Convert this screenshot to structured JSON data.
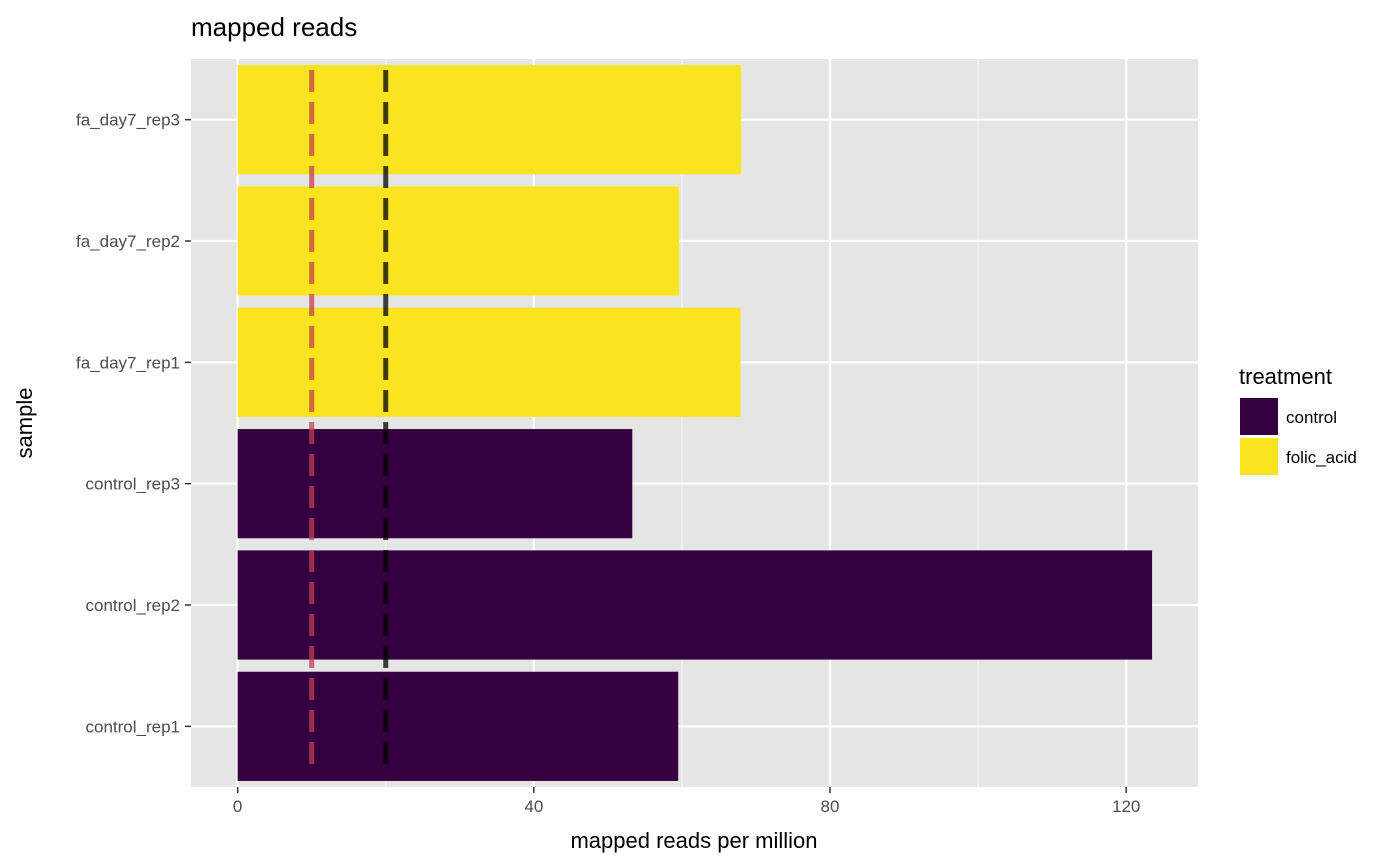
{
  "chart_data": {
    "type": "bar",
    "orientation": "horizontal",
    "title": "mapped reads",
    "xlabel": "mapped reads per million",
    "ylabel": "sample",
    "categories": [
      "control_rep1",
      "control_rep2",
      "control_rep3",
      "fa_day7_rep1",
      "fa_day7_rep2",
      "fa_day7_rep3"
    ],
    "values": [
      59.5,
      123.5,
      53.3,
      67.9,
      59.6,
      68.0
    ],
    "groups": [
      "control",
      "control",
      "control",
      "folic_acid",
      "folic_acid",
      "folic_acid"
    ],
    "xlim": [
      -6.3,
      129.7
    ],
    "xticks": [
      0,
      40,
      80,
      120
    ],
    "xtick_labels": [
      "0",
      "40",
      "80",
      "120"
    ],
    "grid": true,
    "reference_lines": [
      {
        "x": 10,
        "color": "#c43c4e",
        "style": "dashed"
      },
      {
        "x": 20,
        "color": "#000000",
        "style": "dashed"
      }
    ],
    "legend": {
      "title": "treatment",
      "position": "right",
      "entries": [
        {
          "label": "control",
          "color": "#35003f"
        },
        {
          "label": "folic_acid",
          "color": "#fae41f"
        }
      ]
    }
  }
}
